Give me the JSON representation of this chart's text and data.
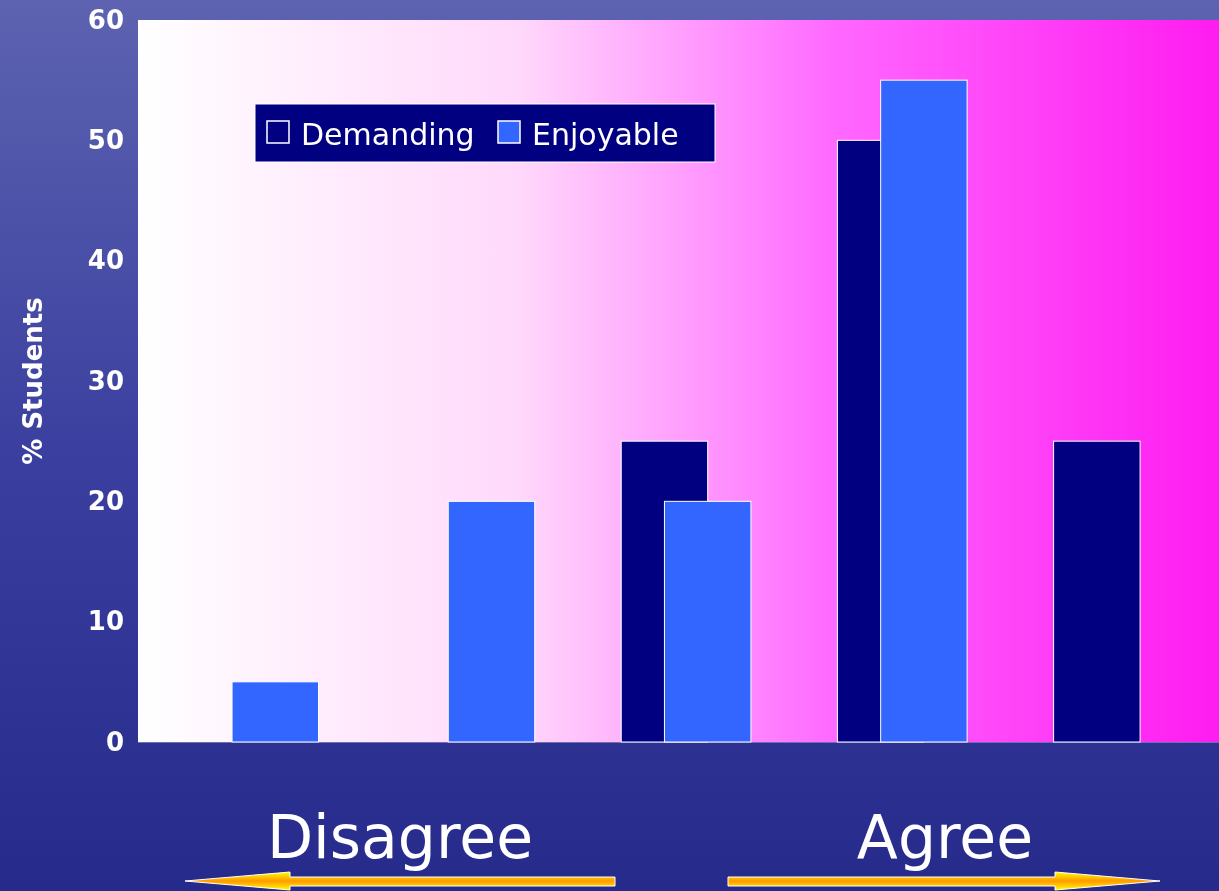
{
  "chart_data": {
    "type": "bar",
    "ylabel": "% Students",
    "categories": [
      null,
      null,
      null,
      null,
      null
    ],
    "series": [
      {
        "name": "Demanding",
        "color": "#000080",
        "values": [
          null,
          null,
          25,
          50,
          25
        ]
      },
      {
        "name": "Enjoyable",
        "color": "#3366ff",
        "values": [
          5,
          20,
          20,
          55,
          null
        ]
      }
    ],
    "ylim": [
      0,
      60
    ],
    "yticks": [
      0,
      10,
      20,
      30,
      40,
      50,
      60
    ],
    "legend": "top left",
    "grid": false,
    "annotations": [
      "Disagree",
      "Agree"
    ]
  }
}
